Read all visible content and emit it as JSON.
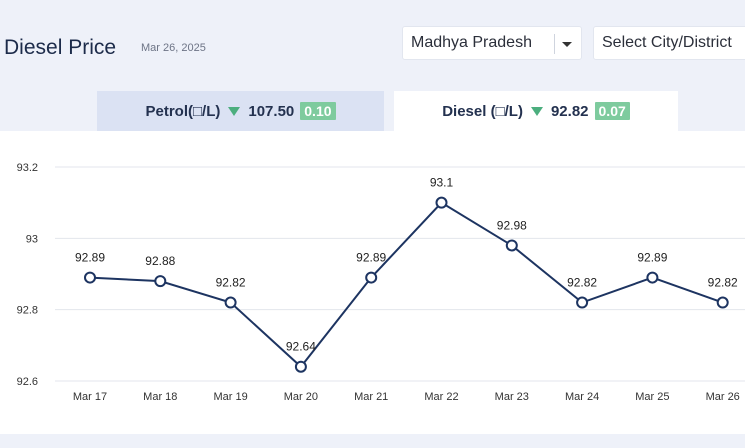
{
  "header": {
    "title": "Diesel Price",
    "date": "Mar 26, 2025",
    "state_select": "Madhya Pradesh",
    "city_select": "Select City/District"
  },
  "tabs": {
    "petrol": {
      "label": "Petrol(□/L)",
      "price": "107.50",
      "change": "0.10"
    },
    "diesel": {
      "label": "Diesel (□/L)",
      "price": "92.82",
      "change": "0.07"
    }
  },
  "colors": {
    "line": "#1d3461",
    "change_down": "#4cae7e",
    "badge": "#7ecb9e"
  },
  "chart_data": {
    "type": "line",
    "categories": [
      "Mar 17",
      "Mar 18",
      "Mar 19",
      "Mar 20",
      "Mar 21",
      "Mar 22",
      "Mar 23",
      "Mar 24",
      "Mar 25",
      "Mar 26"
    ],
    "values": [
      92.89,
      92.88,
      92.82,
      92.64,
      92.89,
      93.1,
      92.98,
      92.82,
      92.89,
      92.82
    ],
    "data_labels": [
      "92.89",
      "92.88",
      "92.82",
      "92.64",
      "92.89",
      "93.1",
      "92.98",
      "92.82",
      "92.89",
      "92.82"
    ],
    "yticks": [
      92.6,
      92.8,
      93,
      93.2
    ],
    "ytick_labels": [
      "92.6",
      "92.8",
      "93",
      "93.2"
    ],
    "ylim": [
      92.6,
      93.2
    ],
    "grid": "horizontal",
    "markers": "hollow-circle"
  }
}
